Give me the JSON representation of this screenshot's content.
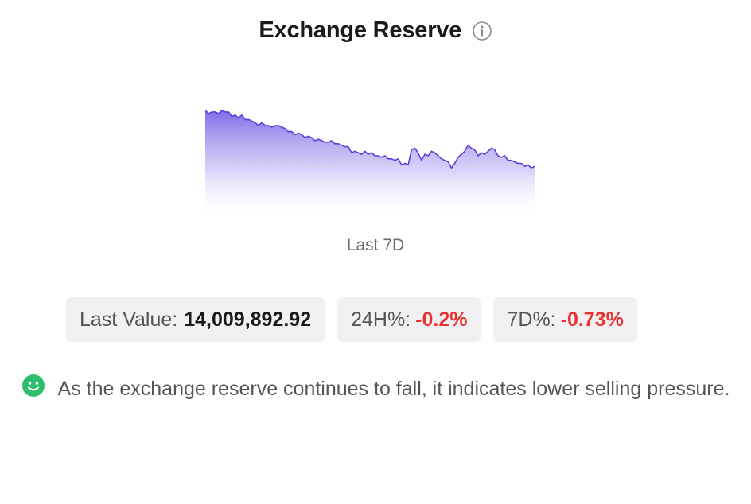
{
  "header": {
    "title": "Exchange Reserve",
    "info_icon": "info-circle-icon"
  },
  "chart_data": {
    "type": "area",
    "title": "",
    "xlabel": "Last 7D",
    "ylabel": "",
    "y": [
      100,
      98,
      99,
      99,
      98,
      100,
      99,
      99,
      96,
      97,
      95,
      97,
      94,
      94,
      93,
      92,
      90,
      92,
      90,
      90,
      89,
      90,
      90,
      89,
      88,
      86,
      86,
      84,
      85,
      84,
      82,
      83,
      82,
      80,
      81,
      80,
      79,
      79,
      80,
      78,
      78,
      77,
      76,
      76,
      72,
      73,
      72,
      71,
      73,
      71,
      72,
      70,
      70,
      69,
      70,
      68,
      68,
      67,
      68,
      64,
      65,
      64,
      74,
      75,
      72,
      67,
      71,
      70,
      73,
      72,
      70,
      68,
      67,
      66,
      62,
      65,
      69,
      71,
      73,
      77,
      75,
      74,
      70,
      72,
      71,
      73,
      75,
      74,
      70,
      69,
      70,
      67,
      67,
      66,
      65,
      65,
      63,
      64,
      62,
      63
    ],
    "ylim": [
      0,
      100
    ],
    "grid": false,
    "colors": {
      "line": "#5b3fd9",
      "fill_top": "#7b63e6",
      "fill_bottom": "#ffffff"
    }
  },
  "stats": {
    "last_value": {
      "label": "Last Value:",
      "value": "14,009,892.92"
    },
    "h24": {
      "label": "24H%:",
      "value": "-0.2%"
    },
    "d7": {
      "label": "7D%:",
      "value": "-0.73%"
    },
    "negative_color": "#e8322f"
  },
  "note": {
    "icon": "smile-face-icon",
    "icon_color": "#2dbe6c",
    "text": "As the exchange reserve continues to fall, it indicates lower selling pressure."
  }
}
